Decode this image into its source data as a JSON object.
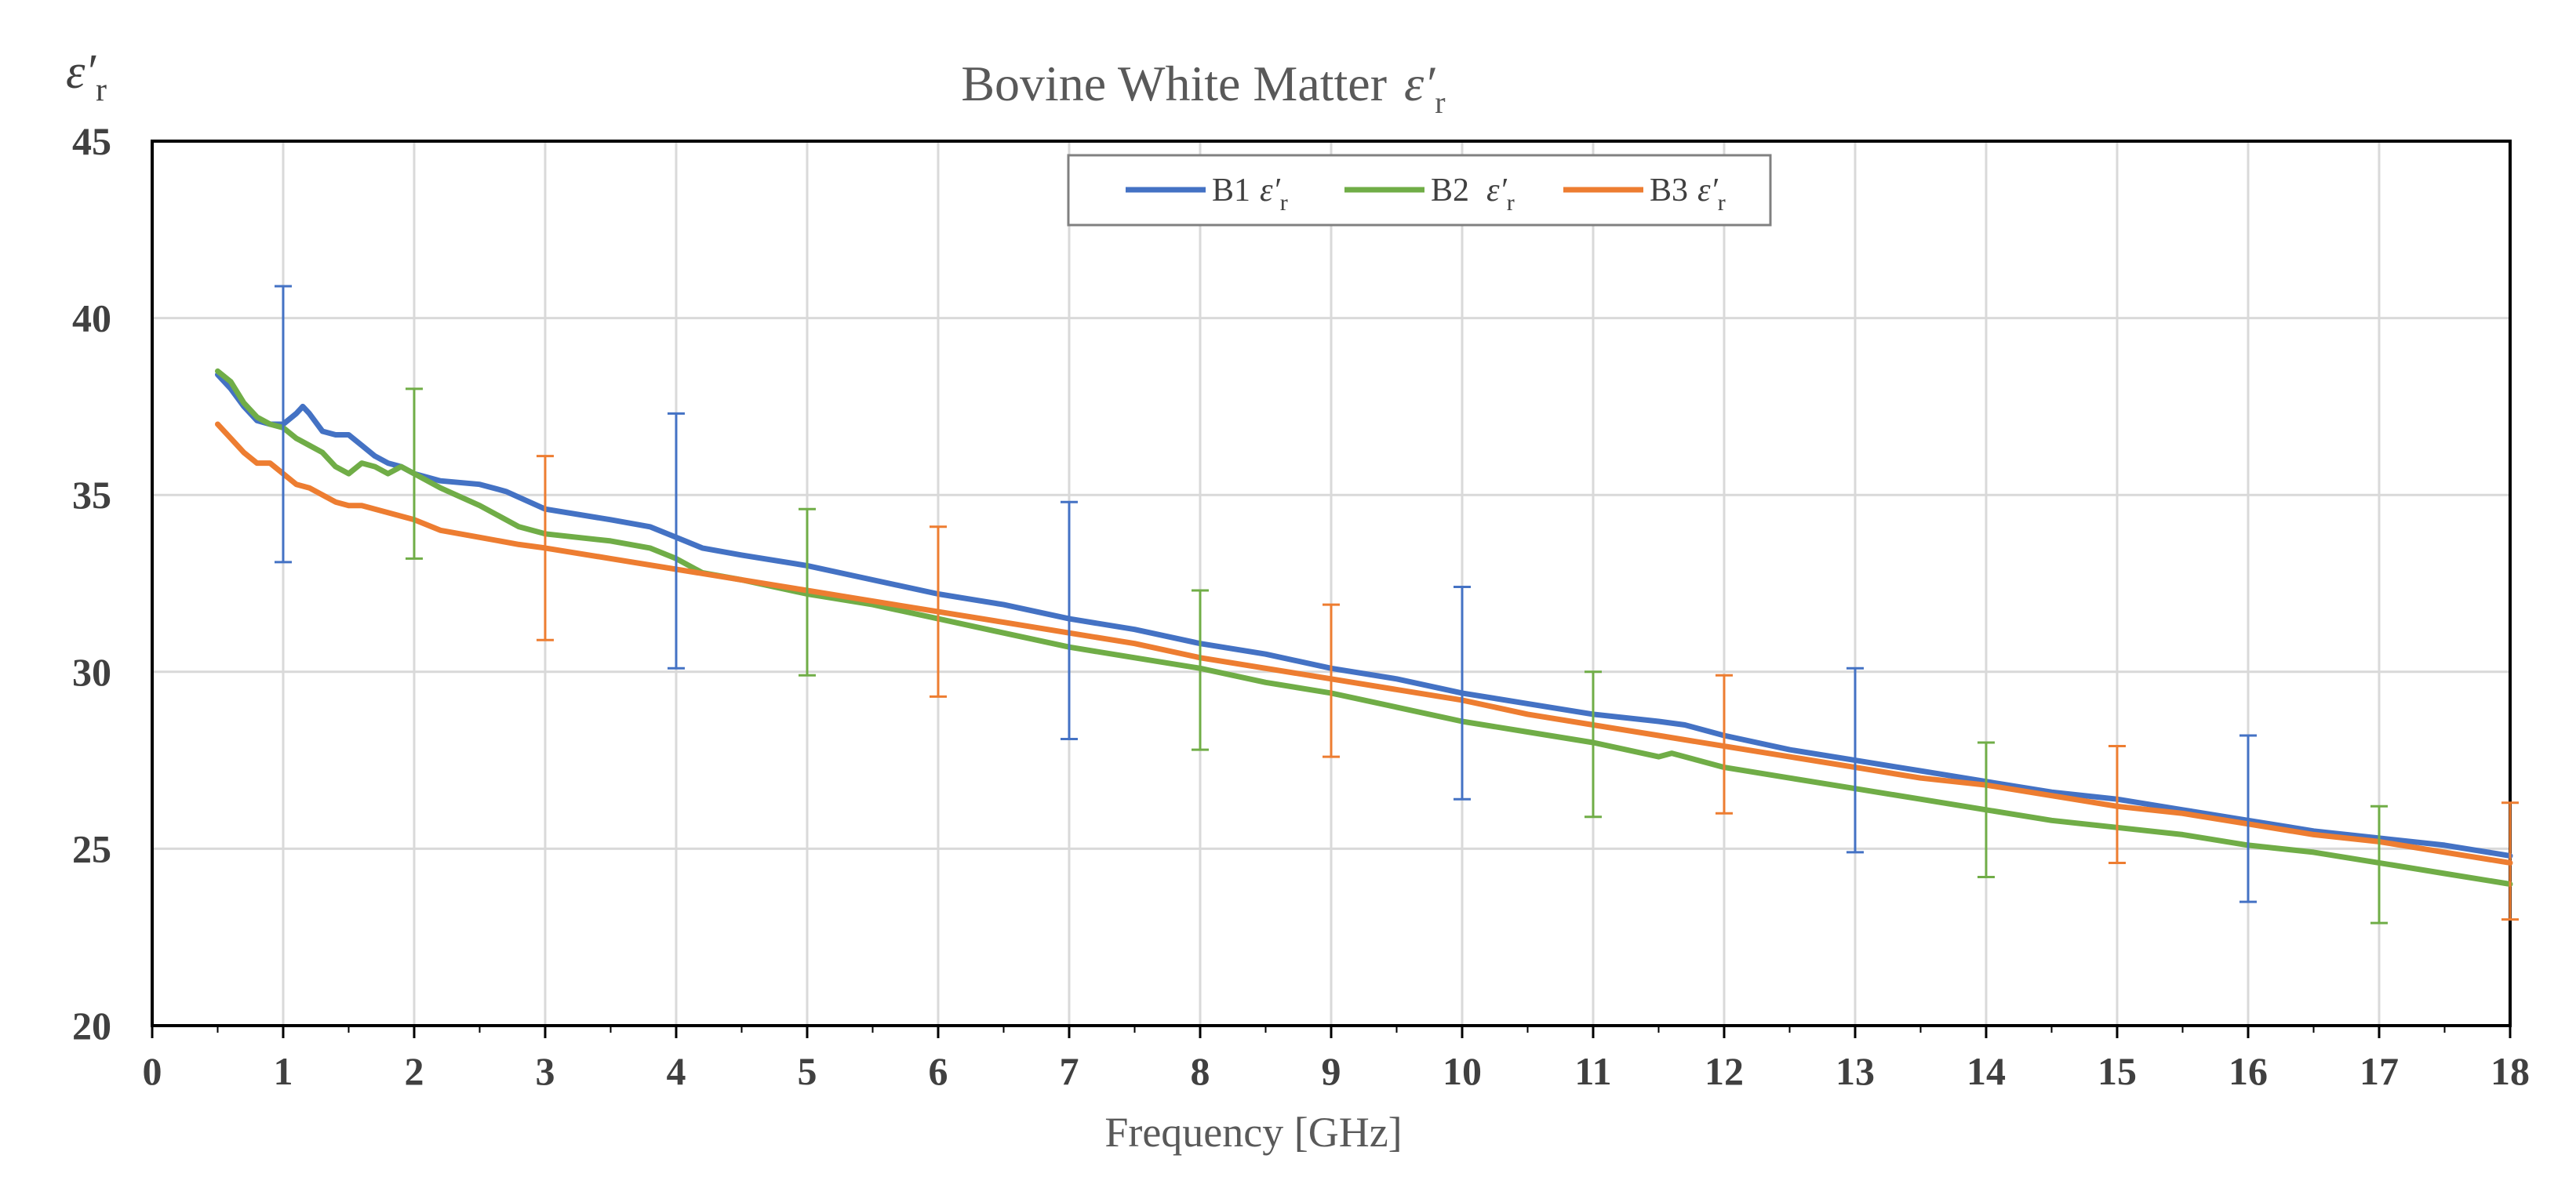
{
  "chart_data": {
    "type": "line",
    "title": "Bovine White Matter",
    "title_symbol": "ε′",
    "title_subscript": "r",
    "ylabel_symbol": "ε′",
    "ylabel_subscript": "r",
    "xlabel": "Frequency [GHz]",
    "xlim": [
      0,
      18
    ],
    "ylim": [
      20,
      45
    ],
    "xticks": [
      "0",
      "1",
      "2",
      "3",
      "4",
      "5",
      "6",
      "7",
      "8",
      "9",
      "10",
      "11",
      "12",
      "13",
      "14",
      "15",
      "16",
      "17",
      "18"
    ],
    "yticks": [
      "20",
      "25",
      "30",
      "35",
      "40",
      "45"
    ],
    "grid": true,
    "legend_position": "top-center",
    "series": [
      {
        "name": "B1",
        "legend_symbol": "ε′",
        "legend_subscript": "r",
        "color": "#4472C4",
        "x": [
          0.5,
          0.6,
          0.7,
          0.8,
          0.9,
          1.0,
          1.1,
          1.15,
          1.2,
          1.3,
          1.4,
          1.5,
          1.6,
          1.7,
          1.8,
          1.9,
          2.0,
          2.2,
          2.5,
          2.7,
          3.0,
          3.5,
          3.8,
          4.0,
          4.2,
          4.5,
          5.0,
          5.5,
          6.0,
          6.5,
          7.0,
          7.5,
          8.0,
          8.5,
          9.0,
          9.5,
          10.0,
          10.5,
          11.0,
          11.5,
          11.7,
          12.0,
          12.5,
          13.0,
          13.5,
          14.0,
          14.5,
          15.0,
          15.5,
          16.0,
          16.5,
          17.0,
          17.5,
          18.0
        ],
        "y": [
          38.4,
          38.0,
          37.5,
          37.1,
          37.0,
          37.0,
          37.3,
          37.5,
          37.3,
          36.8,
          36.7,
          36.7,
          36.4,
          36.1,
          35.9,
          35.8,
          35.6,
          35.4,
          35.3,
          35.1,
          34.6,
          34.3,
          34.1,
          33.8,
          33.5,
          33.3,
          33.0,
          32.6,
          32.2,
          31.9,
          31.5,
          31.2,
          30.8,
          30.5,
          30.1,
          29.8,
          29.4,
          29.1,
          28.8,
          28.6,
          28.5,
          28.2,
          27.8,
          27.5,
          27.2,
          26.9,
          26.6,
          26.4,
          26.1,
          25.8,
          25.5,
          25.3,
          25.1,
          24.8
        ]
      },
      {
        "name": "B2",
        "legend_symbol": "ε′",
        "legend_subscript": "r",
        "color": "#70AD47",
        "x": [
          0.5,
          0.6,
          0.7,
          0.8,
          0.9,
          1.0,
          1.1,
          1.2,
          1.3,
          1.4,
          1.5,
          1.6,
          1.7,
          1.8,
          1.9,
          2.0,
          2.2,
          2.5,
          2.8,
          3.0,
          3.5,
          3.8,
          4.0,
          4.2,
          4.5,
          5.0,
          5.5,
          6.0,
          6.5,
          7.0,
          7.5,
          8.0,
          8.5,
          9.0,
          9.5,
          10.0,
          10.5,
          11.0,
          11.5,
          11.6,
          12.0,
          12.5,
          13.0,
          13.5,
          14.0,
          14.5,
          15.0,
          15.5,
          16.0,
          16.5,
          17.0,
          17.5,
          18.0
        ],
        "y": [
          38.5,
          38.2,
          37.6,
          37.2,
          37.0,
          36.9,
          36.6,
          36.4,
          36.2,
          35.8,
          35.6,
          35.9,
          35.8,
          35.6,
          35.8,
          35.6,
          35.2,
          34.7,
          34.1,
          33.9,
          33.7,
          33.5,
          33.2,
          32.8,
          32.6,
          32.2,
          31.9,
          31.5,
          31.1,
          30.7,
          30.4,
          30.1,
          29.7,
          29.4,
          29.0,
          28.6,
          28.3,
          28.0,
          27.6,
          27.7,
          27.3,
          27.0,
          26.7,
          26.4,
          26.1,
          25.8,
          25.6,
          25.4,
          25.1,
          24.9,
          24.6,
          24.3,
          24.0
        ]
      },
      {
        "name": "B3",
        "legend_symbol": "ε′",
        "legend_subscript": "r",
        "color": "#ED7D31",
        "x": [
          0.5,
          0.6,
          0.7,
          0.8,
          0.9,
          1.0,
          1.1,
          1.2,
          1.3,
          1.4,
          1.5,
          1.6,
          1.7,
          1.8,
          1.9,
          2.0,
          2.2,
          2.5,
          2.8,
          3.0,
          3.5,
          4.0,
          4.5,
          5.0,
          5.5,
          6.0,
          6.5,
          7.0,
          7.5,
          8.0,
          8.5,
          9.0,
          9.5,
          10.0,
          10.5,
          11.0,
          11.5,
          12.0,
          12.5,
          13.0,
          13.5,
          14.0,
          14.5,
          15.0,
          15.5,
          16.0,
          16.5,
          17.0,
          17.5,
          18.0
        ],
        "y": [
          37.0,
          36.6,
          36.2,
          35.9,
          35.9,
          35.6,
          35.3,
          35.2,
          35.0,
          34.8,
          34.7,
          34.7,
          34.6,
          34.5,
          34.4,
          34.3,
          34.0,
          33.8,
          33.6,
          33.5,
          33.2,
          32.9,
          32.6,
          32.3,
          32.0,
          31.7,
          31.4,
          31.1,
          30.8,
          30.4,
          30.1,
          29.8,
          29.5,
          29.2,
          28.8,
          28.5,
          28.2,
          27.9,
          27.6,
          27.3,
          27.0,
          26.8,
          26.5,
          26.2,
          26.0,
          25.7,
          25.4,
          25.2,
          24.9,
          24.6
        ]
      }
    ],
    "error_bars": [
      {
        "series": "B1",
        "x": 1,
        "low": 33.1,
        "high": 40.9
      },
      {
        "series": "B2",
        "x": 2,
        "low": 33.2,
        "high": 38.0
      },
      {
        "series": "B3",
        "x": 3,
        "low": 30.9,
        "high": 36.1
      },
      {
        "series": "B1",
        "x": 4,
        "low": 30.1,
        "high": 37.3
      },
      {
        "series": "B2",
        "x": 5,
        "low": 29.9,
        "high": 34.6
      },
      {
        "series": "B3",
        "x": 6,
        "low": 29.3,
        "high": 34.1
      },
      {
        "series": "B1",
        "x": 7,
        "low": 28.1,
        "high": 34.8
      },
      {
        "series": "B2",
        "x": 8,
        "low": 27.8,
        "high": 32.3
      },
      {
        "series": "B3",
        "x": 9,
        "low": 27.6,
        "high": 31.9
      },
      {
        "series": "B1",
        "x": 10,
        "low": 26.4,
        "high": 32.4
      },
      {
        "series": "B2",
        "x": 11,
        "low": 25.9,
        "high": 30.0
      },
      {
        "series": "B3",
        "x": 12,
        "low": 26.0,
        "high": 29.9
      },
      {
        "series": "B1",
        "x": 13,
        "low": 24.9,
        "high": 30.1
      },
      {
        "series": "B2",
        "x": 14,
        "low": 24.2,
        "high": 28.0
      },
      {
        "series": "B3",
        "x": 15,
        "low": 24.6,
        "high": 27.9
      },
      {
        "series": "B1",
        "x": 16,
        "low": 23.5,
        "high": 28.2
      },
      {
        "series": "B2",
        "x": 17,
        "low": 22.9,
        "high": 26.2
      },
      {
        "series": "B3",
        "x": 18,
        "low": 23.0,
        "high": 26.3
      }
    ]
  }
}
